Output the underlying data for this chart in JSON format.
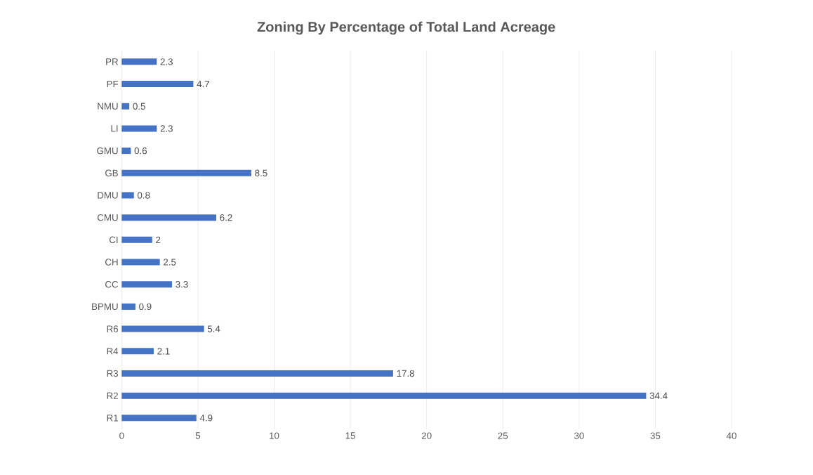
{
  "chart_data": {
    "type": "bar",
    "orientation": "horizontal",
    "title": "Zoning By Percentage of Total Land Acreage",
    "categories": [
      "PR",
      "PF",
      "NMU",
      "LI",
      "GMU",
      "GB",
      "DMU",
      "CMU",
      "CI",
      "CH",
      "CC",
      "BPMU",
      "R6",
      "R4",
      "R3",
      "R2",
      "R1"
    ],
    "values": [
      2.3,
      4.7,
      0.5,
      2.3,
      0.6,
      8.5,
      0.8,
      6.2,
      2,
      2.5,
      3.3,
      0.9,
      5.4,
      2.1,
      17.8,
      34.4,
      4.9
    ],
    "color": "#4472c4",
    "xlim": [
      0,
      40
    ],
    "xticks": [
      0,
      5,
      10,
      15,
      20,
      25,
      30,
      35,
      40
    ],
    "grid": "x",
    "data_labels": true
  }
}
